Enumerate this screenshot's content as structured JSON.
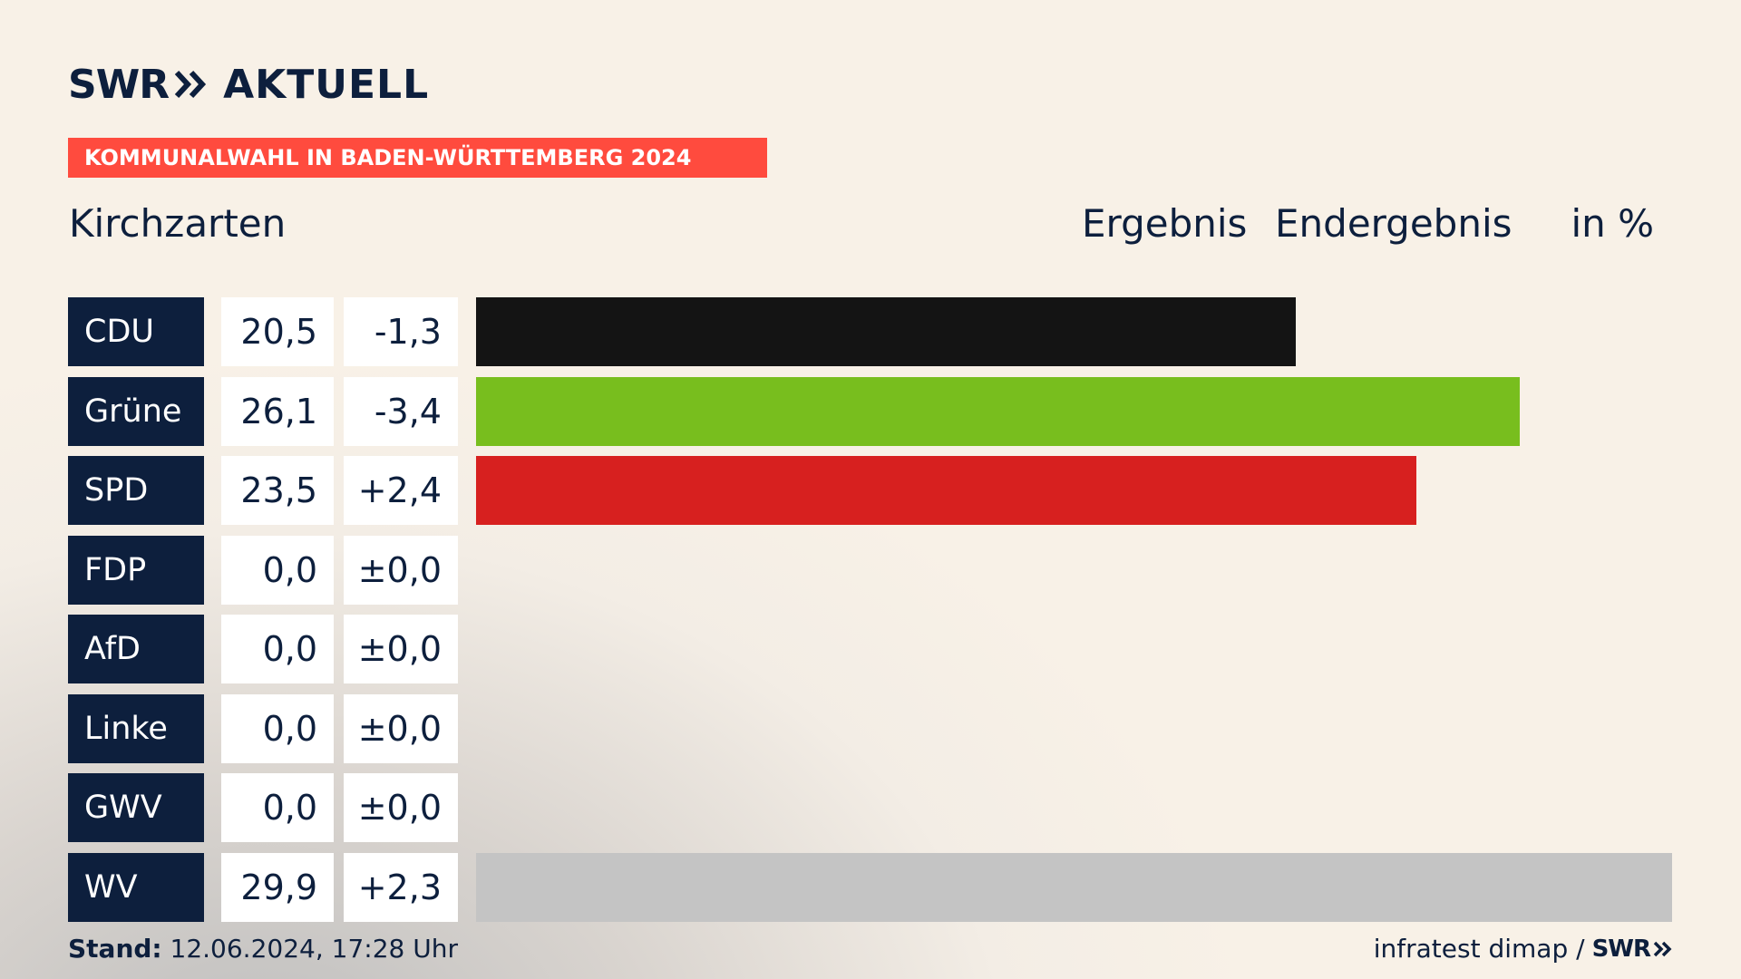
{
  "brand": {
    "left": "SWR",
    "right": "AKTUELL",
    "footer_brand": "SWR"
  },
  "banner": "KOMMUNALWAHL IN BADEN-WÜRTTEMBERG 2024",
  "place": "Kirchzarten",
  "headers": {
    "result": "Ergebnis",
    "status": "Endergebnis",
    "unit": "in %"
  },
  "footer": {
    "stand_label": "Stand:",
    "stand_value": " 12.06.2024, 17:28 Uhr",
    "source": "infratest dimap /"
  },
  "colors": {
    "navy": "#0d1f3d",
    "accent": "#ff4b3e"
  },
  "chart_data": {
    "type": "bar",
    "orientation": "horizontal",
    "title": "Ergebnis Endergebnis",
    "unit": "%",
    "categories": [
      "CDU",
      "Grüne",
      "SPD",
      "FDP",
      "AfD",
      "Linke",
      "GWV",
      "WV"
    ],
    "values": [
      20.5,
      26.1,
      23.5,
      0.0,
      0.0,
      0.0,
      0.0,
      29.9
    ],
    "labels": [
      "20,5",
      "26,1",
      "23,5",
      "0,0",
      "0,0",
      "0,0",
      "0,0",
      "29,9"
    ],
    "diffs": [
      "-1,3",
      "-3,4",
      "+2,4",
      "±0,0",
      "±0,0",
      "±0,0",
      "±0,0",
      "+2,3"
    ],
    "colors": [
      "#141414",
      "#78be1e",
      "#d7201f",
      "#f5d020",
      "#1aa1e0",
      "#b1007a",
      "#a0a0a0",
      "#c4c4c4"
    ],
    "xlim": [
      0,
      29.9
    ]
  }
}
